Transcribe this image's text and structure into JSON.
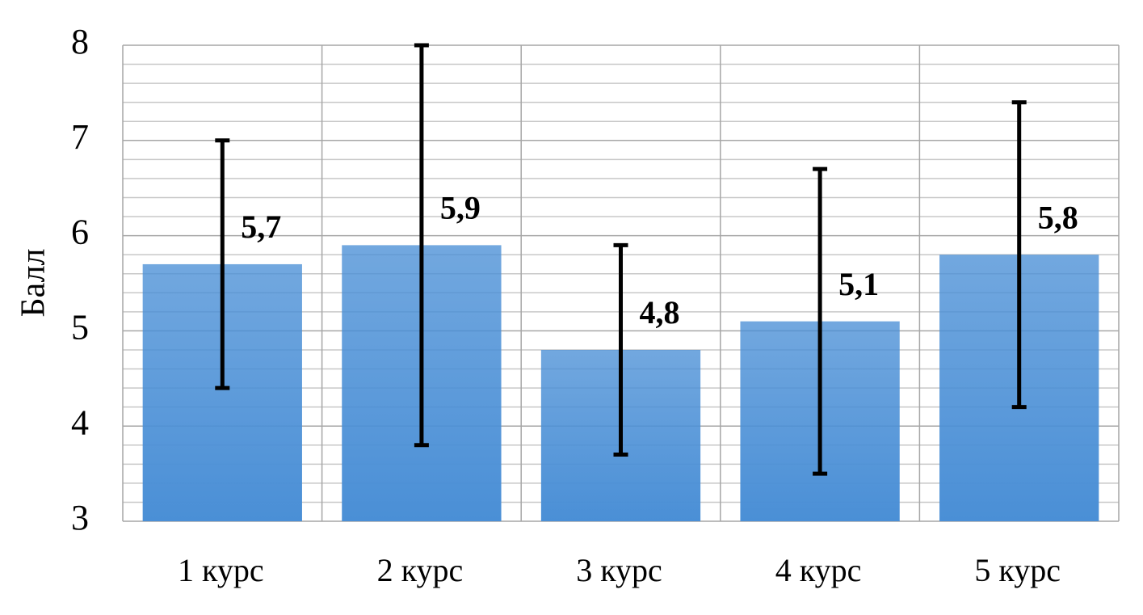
{
  "chart_data": {
    "type": "bar",
    "y_label": "Балл",
    "categories": [
      "1 курс",
      "2 курс",
      "3 курс",
      "4 курс",
      "5 курс"
    ],
    "values": [
      5.7,
      5.9,
      4.8,
      5.1,
      5.8
    ],
    "value_labels": [
      "5,7",
      "5,9",
      "4,8",
      "5,1",
      "5,8"
    ],
    "errors": [
      1.3,
      2.1,
      1.1,
      1.6,
      1.6
    ],
    "color": "#4a8fd6",
    "ylim": [
      3,
      8
    ],
    "yticks": [
      3,
      4,
      5,
      6,
      7,
      8
    ],
    "grid": true,
    "minor_grid_divisions": 5
  }
}
